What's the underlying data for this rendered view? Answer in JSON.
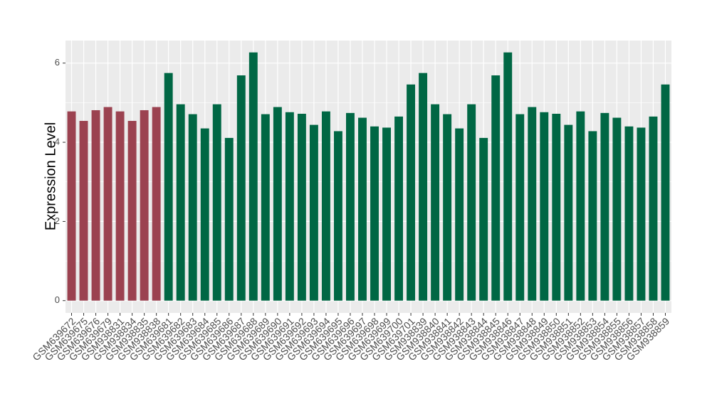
{
  "chart_data": {
    "type": "bar",
    "y_label": "Expression Level",
    "categories": [
      "GSM639672",
      "GSM639675",
      "GSM639676",
      "GSM639679",
      "GSM938831",
      "GSM938834",
      "GSM938835",
      "GSM938838",
      "GSM639681",
      "GSM639682",
      "GSM639683",
      "GSM639684",
      "GSM639685",
      "GSM639686",
      "GSM639687",
      "GSM639688",
      "GSM639689",
      "GSM639690",
      "GSM639691",
      "GSM639692",
      "GSM639693",
      "GSM639694",
      "GSM639695",
      "GSM639696",
      "GSM639697",
      "GSM639698",
      "GSM639699",
      "GSM639700",
      "GSM639701",
      "GSM938839",
      "GSM938840",
      "GSM938841",
      "GSM938842",
      "GSM938843",
      "GSM938844",
      "GSM938845",
      "GSM938846",
      "GSM938847",
      "GSM938848",
      "GSM938849",
      "GSM938850",
      "GSM938851",
      "GSM938852",
      "GSM938853",
      "GSM938854",
      "GSM938855",
      "GSM938856",
      "GSM938857",
      "GSM938858",
      "GSM938859"
    ],
    "values": [
      4.78,
      4.54,
      4.81,
      4.89,
      4.78,
      4.54,
      4.81,
      4.89,
      5.75,
      4.96,
      4.71,
      4.35,
      4.96,
      4.11,
      5.69,
      6.27,
      4.71,
      4.89,
      4.76,
      4.72,
      4.44,
      4.78,
      4.28,
      4.74,
      4.62,
      4.4,
      4.37,
      4.65,
      5.46,
      5.75,
      4.96,
      4.71,
      4.35,
      4.96,
      4.11,
      5.69,
      6.27,
      4.71,
      4.89,
      4.76,
      4.72,
      4.44,
      4.78,
      4.28,
      4.74,
      4.62,
      4.4,
      4.37,
      4.65,
      5.46
    ],
    "colors": [
      "#9b4250",
      "#9b4250",
      "#9b4250",
      "#9b4250",
      "#9b4250",
      "#9b4250",
      "#9b4250",
      "#9b4250",
      "#006744",
      "#006744",
      "#006744",
      "#006744",
      "#006744",
      "#006744",
      "#006744",
      "#006744",
      "#006744",
      "#006744",
      "#006744",
      "#006744",
      "#006744",
      "#006744",
      "#006744",
      "#006744",
      "#006744",
      "#006744",
      "#006744",
      "#006744",
      "#006744",
      "#006744",
      "#006744",
      "#006744",
      "#006744",
      "#006744",
      "#006744",
      "#006744",
      "#006744",
      "#006744",
      "#006744",
      "#006744",
      "#006744",
      "#006744",
      "#006744",
      "#006744",
      "#006744",
      "#006744",
      "#006744",
      "#006744",
      "#006744",
      "#006744"
    ],
    "ylim": [
      -0.31,
      6.57
    ],
    "yticks": [
      0,
      2,
      4,
      6
    ],
    "grid": true
  }
}
